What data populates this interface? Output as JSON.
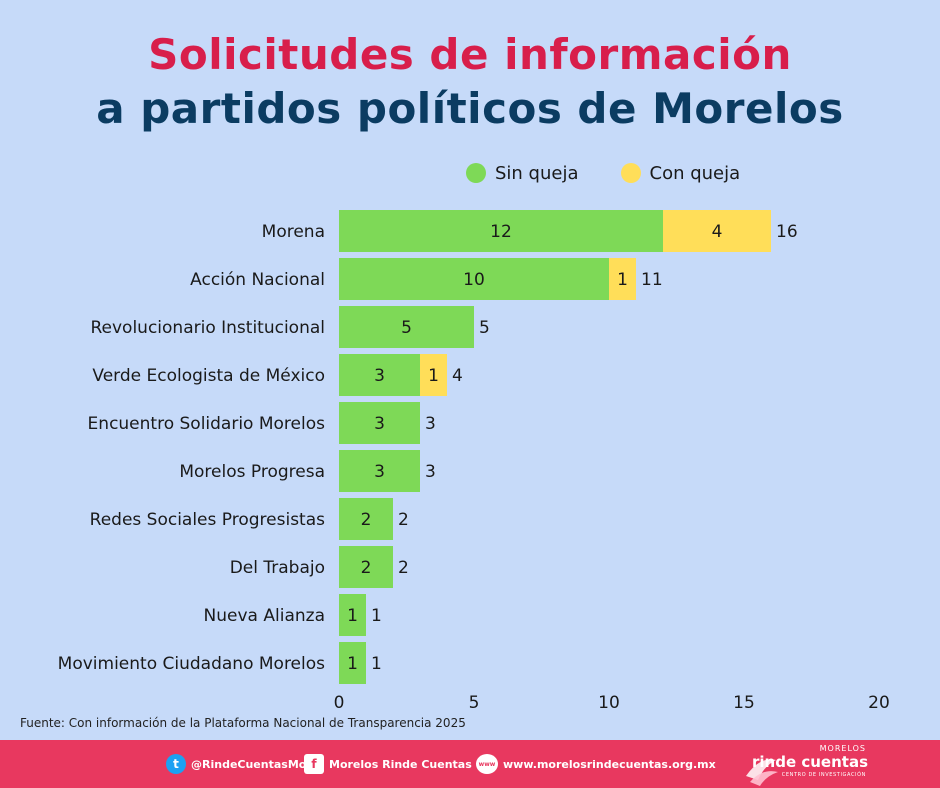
{
  "title_line1": "Solicitudes de información",
  "title_line2": "a partidos políticos de Morelos",
  "legend": [
    {
      "label": "Sin queja",
      "color": "#7ed957"
    },
    {
      "label": "Con queja",
      "color": "#ffde59"
    }
  ],
  "chart_data": {
    "type": "bar",
    "orientation": "horizontal",
    "stacked": true,
    "categories": [
      "Morena",
      "Acción Nacional",
      "Revolucionario Institucional",
      "Verde Ecologista de México",
      "Encuentro Solidario Morelos",
      "Morelos Progresa",
      "Redes Sociales Progresistas",
      "Del Trabajo",
      "Nueva Alianza",
      "Movimiento Ciudadano Morelos"
    ],
    "series": [
      {
        "name": "Sin queja",
        "color": "#7ed957",
        "values": [
          12,
          10,
          5,
          3,
          3,
          3,
          2,
          2,
          1,
          1
        ]
      },
      {
        "name": "Con queja",
        "color": "#ffde59",
        "values": [
          4,
          1,
          0,
          1,
          0,
          0,
          0,
          0,
          0,
          0
        ]
      }
    ],
    "totals": [
      16,
      11,
      5,
      4,
      3,
      3,
      2,
      2,
      1,
      1
    ],
    "xlim": [
      0,
      20
    ],
    "xticks": [
      0,
      5,
      10,
      15,
      20
    ],
    "grid": false
  },
  "source": "Fuente: Con información de la Plataforma Nacional de Transparencia 2025",
  "footer": {
    "twitter": "@RindeCuentasMor",
    "facebook": "Morelos Rinde Cuentas",
    "www_icon": "www",
    "website": "www.morelosrindecuentas.org.mx",
    "logo_top": "MORELOS",
    "logo_main": "rinde cuentas",
    "logo_sub": "CENTRO DE INVESTIGACIÓN"
  }
}
